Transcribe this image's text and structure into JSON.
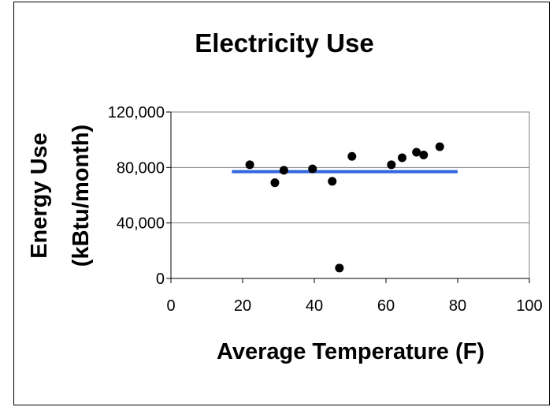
{
  "chart_data": {
    "type": "scatter",
    "title": "Electricity Use",
    "xlabel": "Average Temperature (F)",
    "ylabel_lines": [
      "Energy Use",
      "(kBtu/month)"
    ],
    "xlim": [
      0,
      100
    ],
    "ylim": [
      0,
      120000
    ],
    "x_ticks": [
      0,
      20,
      40,
      60,
      80,
      100
    ],
    "x_tick_labels": [
      "0",
      "20",
      "40",
      "60",
      "80",
      "100"
    ],
    "y_ticks": [
      0,
      40000,
      80000,
      120000
    ],
    "y_tick_labels": [
      "0",
      "40,000",
      "80,000",
      "120,000"
    ],
    "grid": "horizontal",
    "legend": "none",
    "points": [
      {
        "x": 22,
        "y": 82000
      },
      {
        "x": 29,
        "y": 69000
      },
      {
        "x": 31.5,
        "y": 78000
      },
      {
        "x": 39.5,
        "y": 79000
      },
      {
        "x": 45,
        "y": 70000
      },
      {
        "x": 47,
        "y": 7500
      },
      {
        "x": 50.5,
        "y": 88000
      },
      {
        "x": 61.5,
        "y": 82000
      },
      {
        "x": 64.5,
        "y": 87000
      },
      {
        "x": 68.5,
        "y": 91000
      },
      {
        "x": 70.5,
        "y": 89000
      },
      {
        "x": 75,
        "y": 95000
      }
    ],
    "fit_line": {
      "x": [
        17,
        80
      ],
      "y": [
        77000,
        77000
      ]
    },
    "colors": {
      "points": "#000000",
      "fit_line": "#3366dd",
      "grid": "#808080",
      "plot_border": "#808080"
    }
  }
}
